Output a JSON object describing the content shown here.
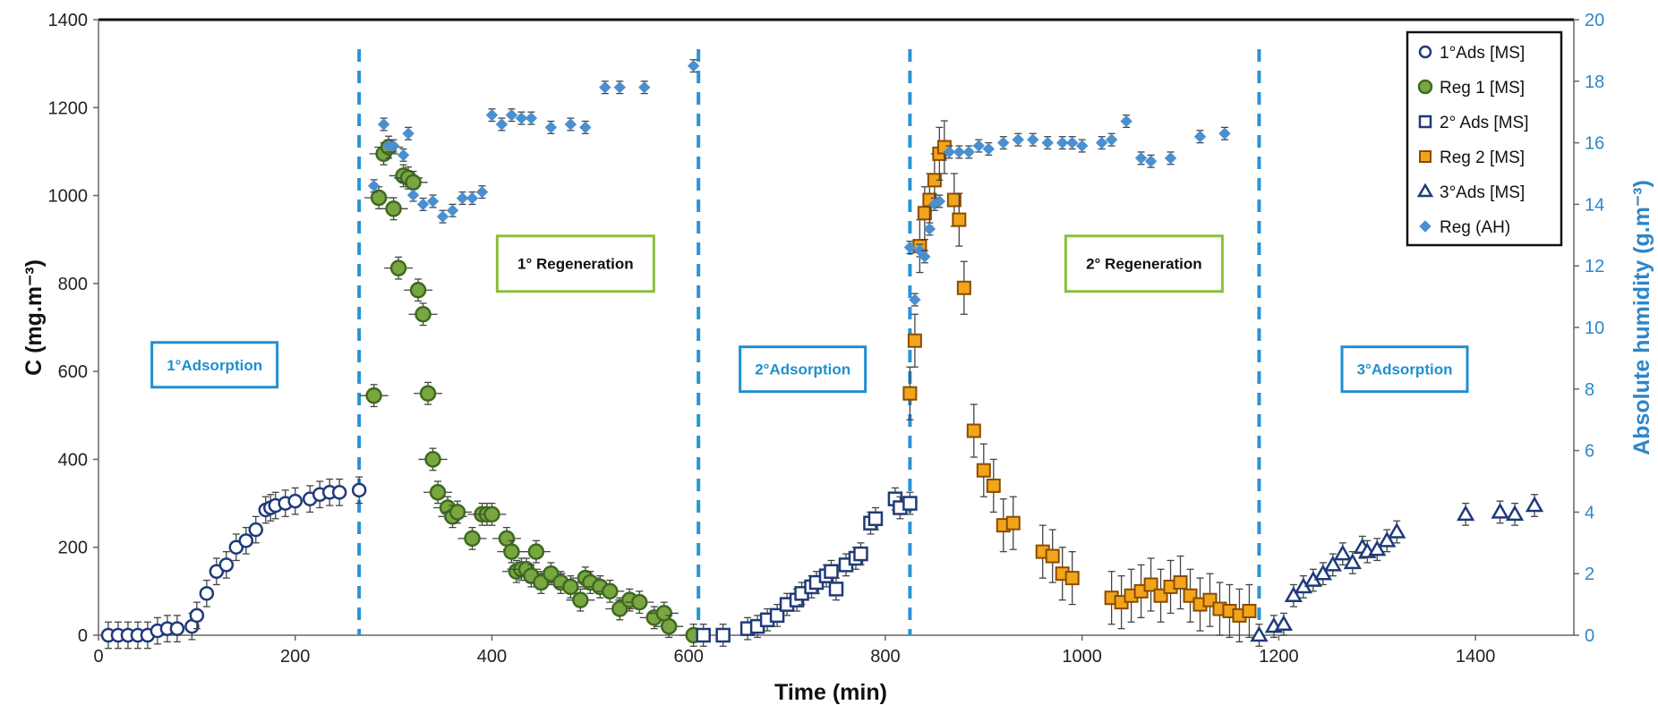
{
  "chart_data": {
    "type": "scatter",
    "xlabel": "Time (min)",
    "ylabel": "C (mg.m⁻³)",
    "y2label": "Absolute humidity (g.m⁻³)",
    "xlim": [
      0,
      1500
    ],
    "ylim": [
      0,
      1400
    ],
    "y2lim": [
      0,
      20
    ],
    "xticks": [
      0,
      200,
      400,
      600,
      800,
      1000,
      1200,
      1400
    ],
    "yticks": [
      0,
      200,
      400,
      600,
      800,
      1000,
      1200,
      1400
    ],
    "y2ticks": [
      0,
      2,
      4,
      6,
      8,
      10,
      12,
      14,
      16,
      18,
      20
    ],
    "grid": false,
    "legend_position": "top-right",
    "phase_lines_x": [
      265,
      610,
      825,
      1180
    ],
    "phase_labels": [
      {
        "text": "1°Adsorption",
        "x": 118,
        "y": 615,
        "color": "#1f8fd1"
      },
      {
        "text": "1° Regeneration",
        "x": 485,
        "y": 845,
        "color": "#111111"
      },
      {
        "text": "2°Adsorption",
        "x": 716,
        "y": 605,
        "color": "#1f8fd1"
      },
      {
        "text": "2° Regeneration",
        "x": 1063,
        "y": 845,
        "color": "#111111"
      },
      {
        "text": "3°Adsorption",
        "x": 1328,
        "y": 605,
        "color": "#1f8fd1"
      }
    ],
    "series": [
      {
        "name": "1°Ads [MS]",
        "marker": "circle-open",
        "axis": "left",
        "color": "#1f3a7a",
        "x": [
          10,
          20,
          30,
          40,
          50,
          60,
          70,
          80,
          95,
          100,
          110,
          120,
          130,
          140,
          150,
          160,
          170,
          175,
          180,
          190,
          200,
          215,
          225,
          235,
          245,
          265
        ],
        "y": [
          0,
          0,
          0,
          0,
          0,
          10,
          15,
          15,
          20,
          45,
          95,
          145,
          160,
          200,
          215,
          240,
          285,
          290,
          295,
          300,
          305,
          310,
          320,
          325,
          325,
          330
        ],
        "yerr": 30
      },
      {
        "name": "Reg 1 [MS]",
        "marker": "circle-filled",
        "axis": "left",
        "color": "#4f7f2a",
        "x": [
          280,
          285,
          290,
          295,
          300,
          305,
          310,
          315,
          320,
          325,
          330,
          335,
          340,
          345,
          355,
          360,
          365,
          380,
          390,
          395,
          400,
          415,
          420,
          425,
          430,
          435,
          440,
          445,
          450,
          460,
          470,
          480,
          490,
          495,
          500,
          510,
          520,
          530,
          540,
          550,
          565,
          575,
          580,
          605
        ],
        "y": [
          545,
          995,
          1095,
          1110,
          970,
          835,
          1045,
          1040,
          1030,
          785,
          730,
          550,
          400,
          325,
          290,
          270,
          280,
          220,
          275,
          275,
          275,
          220,
          190,
          145,
          150,
          150,
          135,
          190,
          120,
          140,
          120,
          110,
          80,
          130,
          120,
          110,
          100,
          60,
          80,
          75,
          40,
          50,
          20,
          0
        ],
        "yerr": 25
      },
      {
        "name": "2° Ads [MS]",
        "marker": "square-open",
        "axis": "left",
        "color": "#1f3a7a",
        "x": [
          615,
          635,
          660,
          670,
          680,
          690,
          700,
          710,
          715,
          725,
          730,
          740,
          745,
          750,
          760,
          770,
          775,
          785,
          790,
          810,
          815,
          825
        ],
        "y": [
          0,
          0,
          15,
          20,
          35,
          45,
          70,
          80,
          95,
          110,
          120,
          135,
          145,
          105,
          160,
          175,
          185,
          255,
          265,
          310,
          290,
          300
        ],
        "yerr": 25
      },
      {
        "name": "Reg 2 [MS]",
        "marker": "square-filled",
        "axis": "left",
        "color": "#f2a51a",
        "x": [
          825,
          830,
          835,
          840,
          845,
          850,
          855,
          860,
          870,
          875,
          880,
          890,
          900,
          910,
          920,
          930,
          960,
          970,
          980,
          990,
          1030,
          1040,
          1050,
          1060,
          1070,
          1080,
          1090,
          1100,
          1110,
          1120,
          1130,
          1140,
          1150,
          1160,
          1170
        ],
        "y": [
          550,
          670,
          885,
          960,
          990,
          1035,
          1095,
          1110,
          990,
          945,
          790,
          465,
          375,
          340,
          250,
          255,
          190,
          180,
          140,
          130,
          85,
          75,
          90,
          100,
          115,
          90,
          110,
          120,
          90,
          70,
          80,
          60,
          55,
          45,
          55
        ],
        "yerr": 60
      },
      {
        "name": "3°Ads [MS]",
        "marker": "triangle-open",
        "axis": "left",
        "color": "#1f3a7a",
        "x": [
          1180,
          1195,
          1205,
          1215,
          1225,
          1235,
          1245,
          1255,
          1265,
          1275,
          1285,
          1290,
          1300,
          1310,
          1320,
          1390,
          1425,
          1440,
          1460
        ],
        "y": [
          0,
          20,
          25,
          90,
          110,
          125,
          140,
          160,
          185,
          165,
          200,
          190,
          195,
          215,
          235,
          275,
          280,
          275,
          295
        ],
        "yerr": 25
      },
      {
        "name": "Reg (AH)",
        "marker": "diamond",
        "axis": "right",
        "color": "#4a90d0",
        "x": [
          280,
          290,
          295,
          300,
          310,
          315,
          320,
          330,
          340,
          350,
          360,
          370,
          380,
          390,
          400,
          410,
          420,
          430,
          440,
          460,
          480,
          495,
          515,
          530,
          555,
          605,
          825,
          830,
          835,
          840,
          845,
          850,
          855,
          865,
          875,
          885,
          895,
          905,
          920,
          935,
          950,
          965,
          980,
          990,
          1000,
          1020,
          1030,
          1045,
          1060,
          1070,
          1090,
          1120,
          1145
        ],
        "y": [
          14.6,
          16.6,
          15.9,
          15.9,
          15.6,
          16.3,
          14.3,
          14.0,
          14.1,
          13.6,
          13.8,
          14.2,
          14.2,
          14.4,
          16.9,
          16.6,
          16.9,
          16.8,
          16.8,
          16.5,
          16.6,
          16.5,
          17.8,
          17.8,
          17.8,
          18.5,
          12.6,
          10.9,
          12.5,
          12.3,
          13.2,
          14.0,
          14.1,
          15.7,
          15.7,
          15.7,
          15.9,
          15.8,
          16.0,
          16.1,
          16.1,
          16.0,
          16.0,
          16.0,
          15.9,
          16.0,
          16.1,
          16.7,
          15.5,
          15.4,
          15.5,
          16.2,
          16.3
        ],
        "yerr": 0.2
      }
    ]
  }
}
